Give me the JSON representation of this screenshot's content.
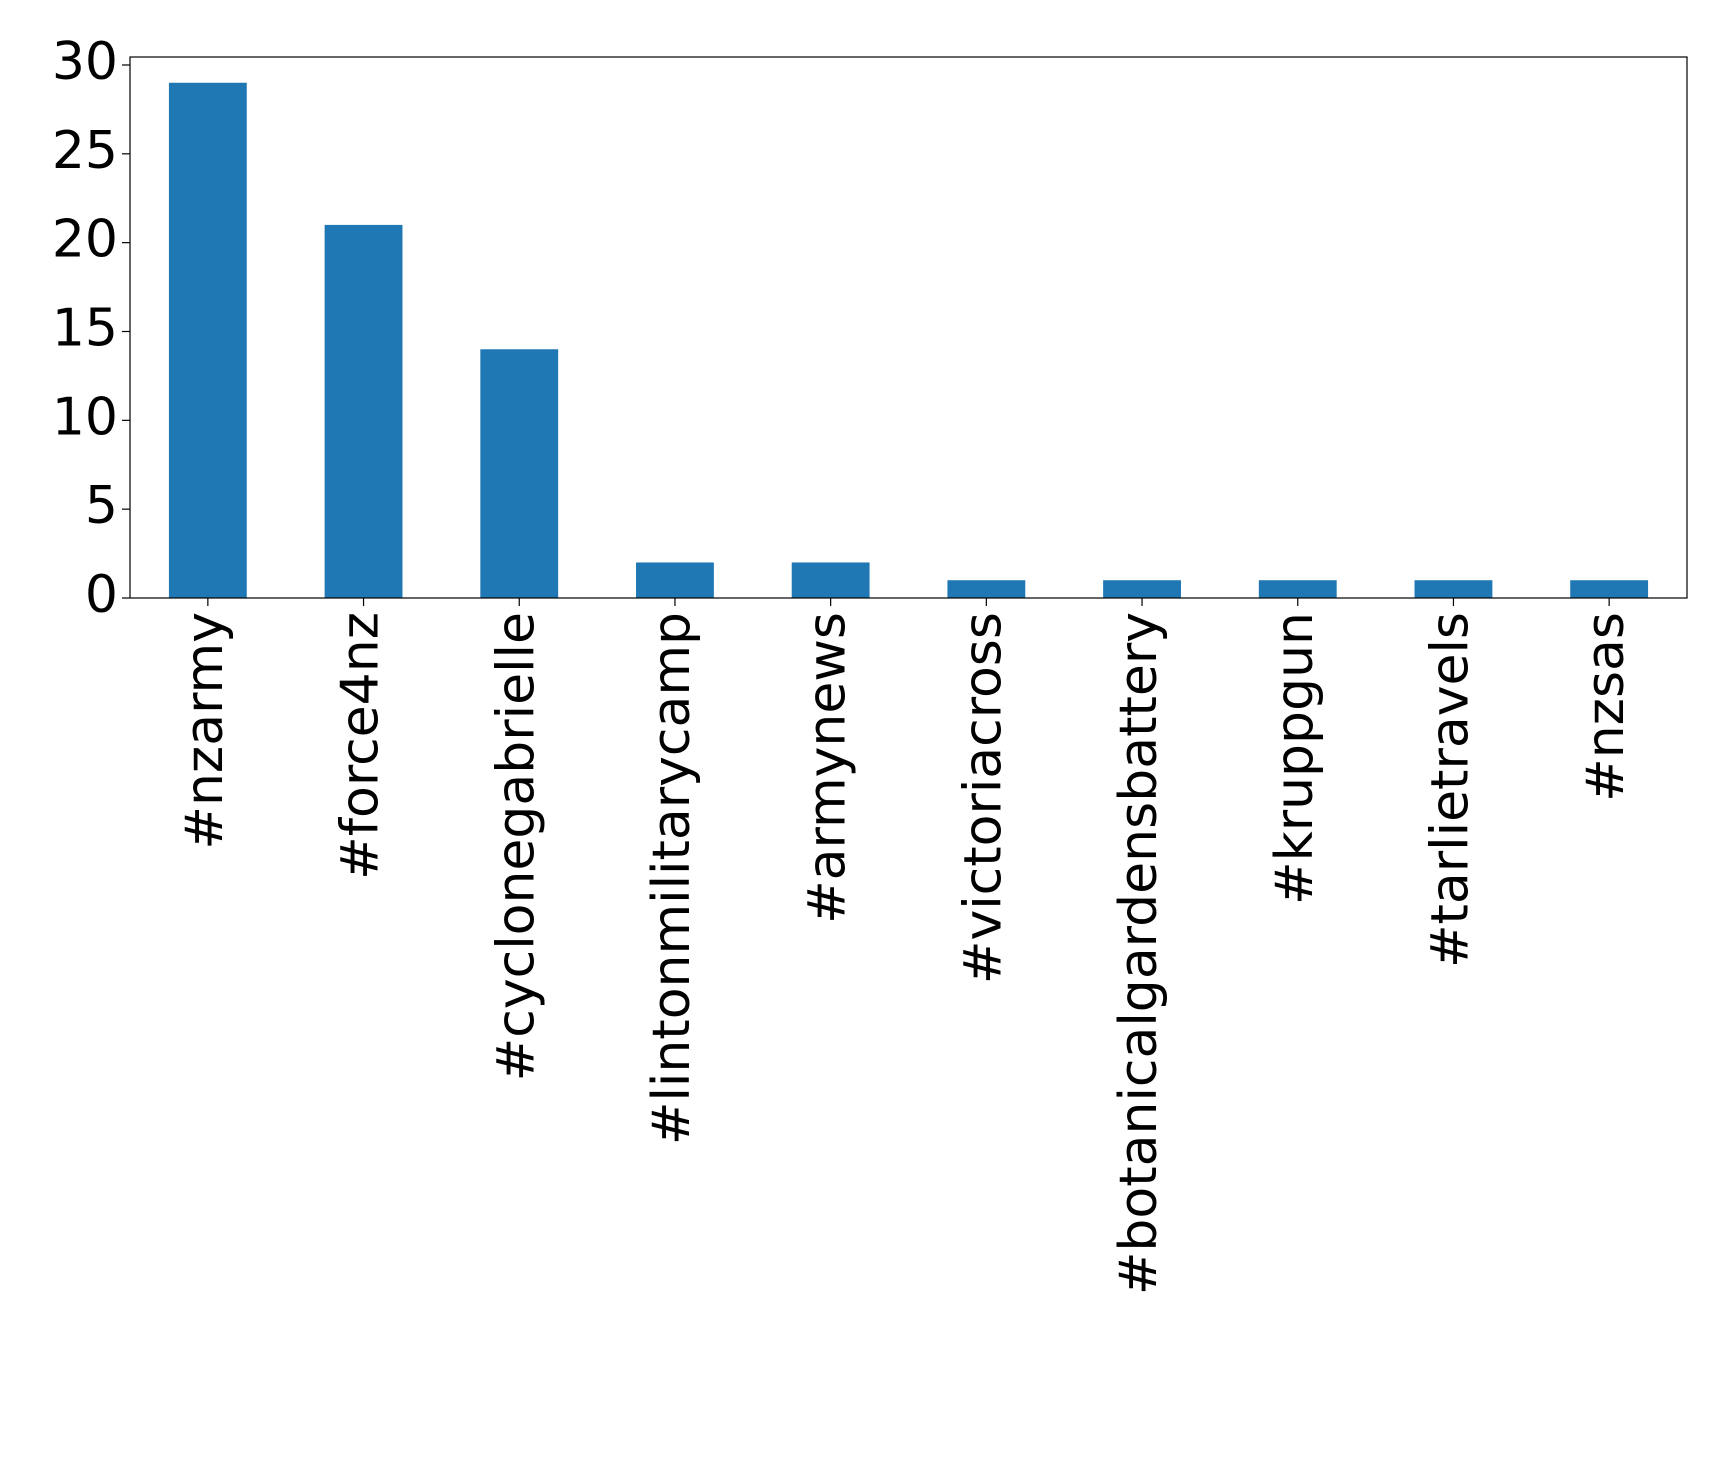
{
  "chart_data": {
    "type": "bar",
    "categories": [
      "#nzarmy",
      "#force4nz",
      "#cyclonegabrielle",
      "#lintonmilitarycamp",
      "#armynews",
      "#victoriacross",
      "#botanicalgardensbattery",
      "#kruppgun",
      "#tarlietravels",
      "#nzsas"
    ],
    "values": [
      29,
      21,
      14,
      2,
      2,
      1,
      1,
      1,
      1,
      1
    ],
    "color": "#1f77b4",
    "ylim": [
      0,
      30.45
    ],
    "yticks": [
      0,
      5,
      10,
      15,
      20,
      25,
      30
    ],
    "grid": false
  }
}
